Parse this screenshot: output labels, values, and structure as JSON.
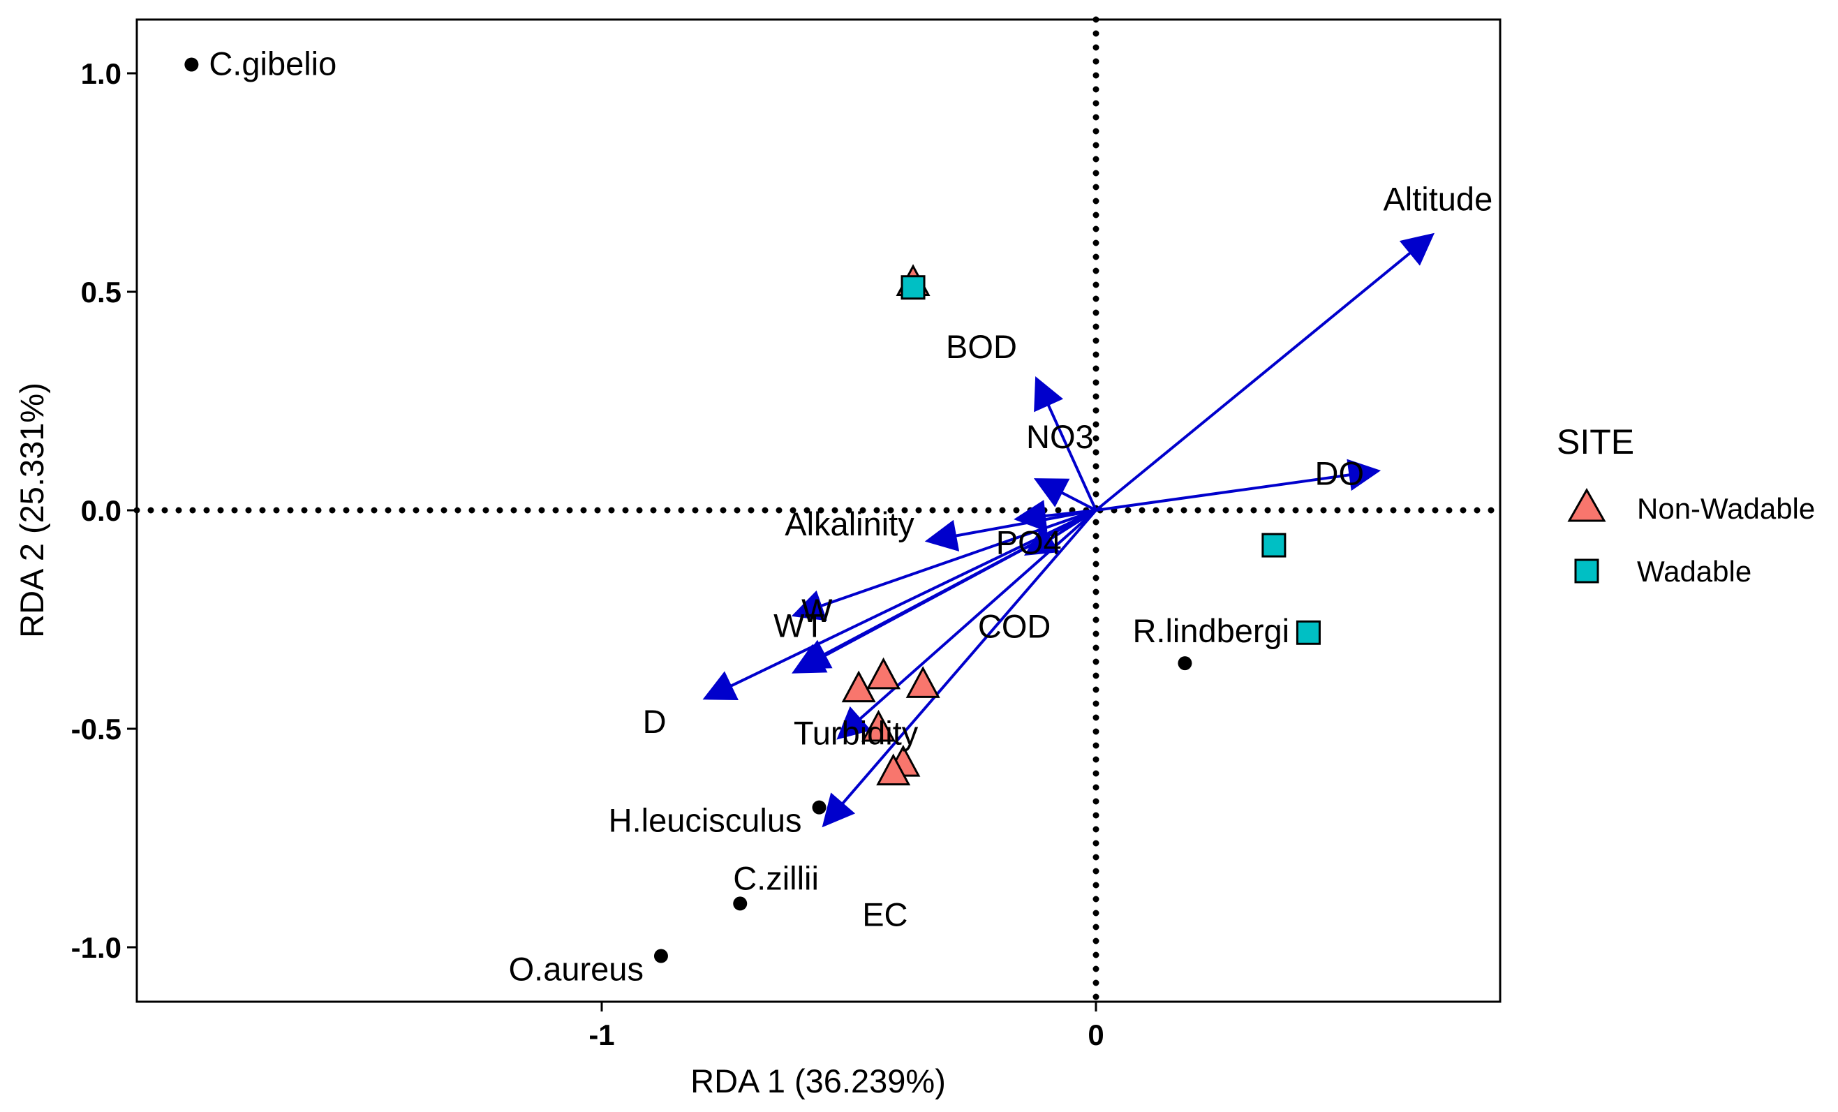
{
  "chart_data": {
    "type": "scatter",
    "subtype": "rda-biplot",
    "xlabel": "RDA 1 (36.239%)",
    "ylabel": "RDA 2 (25.331%)",
    "xlim": [
      -1.95,
      0.82
    ],
    "ylim": [
      -1.12,
      1.12
    ],
    "x_ticks": [
      {
        "value": -1,
        "label": "-1"
      },
      {
        "value": 0,
        "label": "0"
      }
    ],
    "y_ticks": [
      {
        "value": 1.0,
        "label": "1.0"
      },
      {
        "value": 0.5,
        "label": "0.5"
      },
      {
        "value": 0.0,
        "label": "0.0"
      },
      {
        "value": -0.5,
        "label": "-0.5"
      },
      {
        "value": -1.0,
        "label": "-1.0"
      }
    ],
    "zero_lines": "dotted",
    "grid": false,
    "legend": {
      "title": "SITE",
      "position": "right",
      "entries": [
        {
          "name": "Non-Wadable",
          "shape": "triangle",
          "color": "#F8766D"
        },
        {
          "name": "Wadable",
          "shape": "square",
          "color": "#00BFC4"
        }
      ]
    },
    "species": [
      {
        "name": "C.gibelio",
        "x": -1.83,
        "y": 1.02
      },
      {
        "name": "R.lindbergi",
        "x": 0.18,
        "y": -0.35
      },
      {
        "name": "H.leucisculus",
        "x": -0.56,
        "y": -0.68
      },
      {
        "name": "C.zillii",
        "x": -0.72,
        "y": -0.9
      },
      {
        "name": "O.aureus",
        "x": -0.88,
        "y": -1.02
      }
    ],
    "environmental_vectors": [
      {
        "name": "Altitude",
        "x": 0.68,
        "y": 0.63
      },
      {
        "name": "DO",
        "x": 0.57,
        "y": 0.09
      },
      {
        "name": "BOD",
        "x": -0.12,
        "y": 0.3
      },
      {
        "name": "NO3",
        "x": -0.12,
        "y": 0.07
      },
      {
        "name": "Alkalinity",
        "x": -0.34,
        "y": -0.07
      },
      {
        "name": "PO4",
        "x": -0.16,
        "y": -0.02
      },
      {
        "name": "COD",
        "x": -0.14,
        "y": -0.1
      },
      {
        "name": "W",
        "x": -0.61,
        "y": -0.24
      },
      {
        "name": "EC",
        "x": -0.6,
        "y": -0.36
      },
      {
        "name": "WT",
        "x": -0.61,
        "y": -0.37
      },
      {
        "name": "D",
        "x": -0.79,
        "y": -0.43
      },
      {
        "name": "Turbidity",
        "x": -0.52,
        "y": -0.52
      },
      {
        "name": "",
        "x": -0.55,
        "y": -0.72
      }
    ],
    "sites": [
      {
        "group": "Non-Wadable",
        "x": -0.37,
        "y": 0.52
      },
      {
        "group": "Non-Wadable",
        "x": -0.48,
        "y": -0.41
      },
      {
        "group": "Non-Wadable",
        "x": -0.43,
        "y": -0.38
      },
      {
        "group": "Non-Wadable",
        "x": -0.35,
        "y": -0.4
      },
      {
        "group": "Non-Wadable",
        "x": -0.44,
        "y": -0.5
      },
      {
        "group": "Non-Wadable",
        "x": -0.39,
        "y": -0.58
      },
      {
        "group": "Non-Wadable",
        "x": -0.41,
        "y": -0.6
      },
      {
        "group": "Wadable",
        "x": -0.37,
        "y": 0.51
      },
      {
        "group": "Wadable",
        "x": 0.36,
        "y": -0.08
      },
      {
        "group": "Wadable",
        "x": 0.43,
        "y": -0.28
      }
    ],
    "colors": {
      "arrow": "#0000CC",
      "species_point": "#000000",
      "frame": "#000000"
    }
  }
}
